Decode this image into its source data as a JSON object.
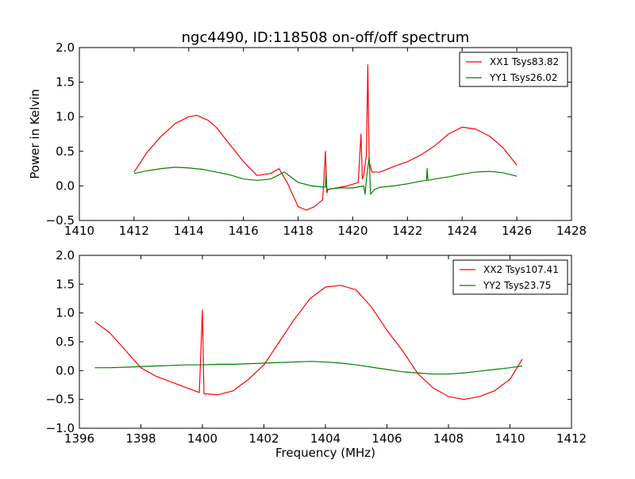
{
  "chart_data": [
    {
      "type": "line",
      "title": "ngc4490, ID:118508 on-off/off spectrum",
      "xlabel": "",
      "ylabel": "Power in Kelvin",
      "xlim": [
        1410,
        1428
      ],
      "ylim": [
        -0.5,
        2.0
      ],
      "xticks": [
        "1410",
        "1412",
        "1414",
        "1416",
        "1418",
        "1420",
        "1422",
        "1424",
        "1426",
        "1428"
      ],
      "yticks": [
        "−0.5",
        "0.0",
        "0.5",
        "1.0",
        "1.5",
        "2.0"
      ],
      "legend_position": "top-right",
      "grid": false,
      "series": [
        {
          "name": "XX1 Tsys83.82",
          "color": "#ff0000",
          "x": [
            1412.0,
            1412.5,
            1413.0,
            1413.5,
            1414.0,
            1414.3,
            1414.7,
            1415.0,
            1415.5,
            1416.0,
            1416.5,
            1417.0,
            1417.3,
            1417.6,
            1418.0,
            1418.3,
            1418.6,
            1418.9,
            1419.0,
            1419.05,
            1419.1,
            1419.4,
            1419.8,
            1420.2,
            1420.3,
            1420.35,
            1420.4,
            1420.5,
            1420.55,
            1420.6,
            1420.7,
            1421.0,
            1421.5,
            1422.0,
            1422.5,
            1423.0,
            1423.5,
            1424.0,
            1424.5,
            1425.0,
            1425.5,
            1426.0
          ],
          "values": [
            0.2,
            0.5,
            0.72,
            0.9,
            1.0,
            1.02,
            0.95,
            0.85,
            0.6,
            0.35,
            0.15,
            0.18,
            0.25,
            0.05,
            -0.3,
            -0.35,
            -0.3,
            -0.2,
            0.5,
            -0.1,
            -0.05,
            -0.03,
            0.0,
            0.05,
            0.75,
            0.1,
            0.15,
            0.45,
            1.75,
            0.35,
            0.2,
            0.2,
            0.28,
            0.35,
            0.45,
            0.58,
            0.75,
            0.85,
            0.82,
            0.72,
            0.55,
            0.3
          ]
        },
        {
          "name": "YY1 Tsys26.02",
          "color": "#008000",
          "x": [
            1412.0,
            1412.5,
            1413.0,
            1413.5,
            1414.0,
            1414.5,
            1415.0,
            1415.5,
            1416.0,
            1416.5,
            1417.0,
            1417.5,
            1418.0,
            1418.5,
            1419.0,
            1419.02,
            1419.05,
            1419.5,
            1420.0,
            1420.4,
            1420.45,
            1420.5,
            1420.6,
            1420.65,
            1420.8,
            1421.0,
            1421.5,
            1422.0,
            1422.5,
            1422.7,
            1422.72,
            1422.75,
            1423.0,
            1423.5,
            1424.0,
            1424.5,
            1425.0,
            1425.5,
            1426.0
          ],
          "values": [
            0.18,
            0.22,
            0.25,
            0.27,
            0.26,
            0.24,
            0.2,
            0.16,
            0.1,
            0.08,
            0.1,
            0.2,
            0.05,
            0.0,
            -0.02,
            0.2,
            -0.05,
            -0.03,
            -0.03,
            0.0,
            -0.12,
            0.1,
            0.42,
            -0.12,
            -0.05,
            -0.02,
            0.0,
            0.03,
            0.07,
            0.08,
            0.25,
            0.08,
            0.1,
            0.13,
            0.17,
            0.2,
            0.21,
            0.19,
            0.14
          ]
        }
      ]
    },
    {
      "type": "line",
      "title": "",
      "xlabel": "Frequency (MHz)",
      "ylabel": "",
      "xlim": [
        1396,
        1412
      ],
      "ylim": [
        -1.0,
        2.0
      ],
      "xticks": [
        "1396",
        "1398",
        "1400",
        "1402",
        "1404",
        "1406",
        "1408",
        "1410",
        "1412"
      ],
      "yticks": [
        "−1.0",
        "−0.5",
        "0.0",
        "0.5",
        "1.0",
        "1.5",
        "2.0"
      ],
      "legend_position": "top-right",
      "grid": false,
      "series": [
        {
          "name": "XX2 Tsys107.41",
          "color": "#ff0000",
          "x": [
            1396.5,
            1397.0,
            1397.5,
            1398.0,
            1398.5,
            1399.0,
            1399.5,
            1399.9,
            1400.0,
            1400.05,
            1400.5,
            1401.0,
            1401.5,
            1402.0,
            1402.5,
            1403.0,
            1403.5,
            1404.0,
            1404.5,
            1405.0,
            1405.5,
            1406.0,
            1406.5,
            1407.0,
            1407.5,
            1408.0,
            1408.5,
            1409.0,
            1409.5,
            1410.0,
            1410.4
          ],
          "values": [
            0.85,
            0.65,
            0.35,
            0.05,
            -0.1,
            -0.2,
            -0.3,
            -0.38,
            1.05,
            -0.4,
            -0.42,
            -0.35,
            -0.15,
            0.1,
            0.5,
            0.9,
            1.25,
            1.45,
            1.48,
            1.4,
            1.1,
            0.7,
            0.35,
            -0.05,
            -0.3,
            -0.45,
            -0.5,
            -0.45,
            -0.35,
            -0.15,
            0.2
          ]
        },
        {
          "name": "YY2 Tsys23.75",
          "color": "#008000",
          "x": [
            1396.5,
            1397.0,
            1397.5,
            1398.0,
            1398.5,
            1399.0,
            1399.5,
            1400.0,
            1400.5,
            1401.0,
            1401.5,
            1402.0,
            1402.5,
            1403.0,
            1403.5,
            1404.0,
            1404.5,
            1405.0,
            1405.5,
            1406.0,
            1406.5,
            1407.0,
            1407.5,
            1408.0,
            1408.5,
            1409.0,
            1409.5,
            1410.0,
            1410.4
          ],
          "values": [
            0.05,
            0.05,
            0.06,
            0.07,
            0.08,
            0.09,
            0.1,
            0.1,
            0.11,
            0.11,
            0.12,
            0.13,
            0.14,
            0.15,
            0.16,
            0.15,
            0.13,
            0.1,
            0.06,
            0.02,
            -0.02,
            -0.04,
            -0.06,
            -0.06,
            -0.04,
            -0.01,
            0.02,
            0.05,
            0.08
          ]
        }
      ]
    }
  ]
}
